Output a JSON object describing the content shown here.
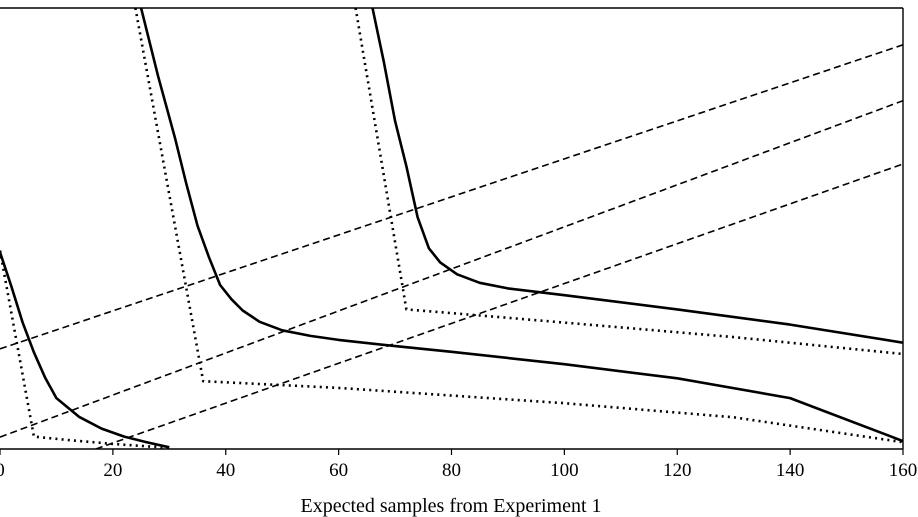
{
  "chart_data": {
    "type": "line",
    "title": "",
    "xlabel": "Expected samples from Experiment 1",
    "ylabel": "",
    "xlim": [
      0,
      160
    ],
    "ylim": [
      0,
      78
    ],
    "x_ticks": [
      {
        "value": 0,
        "label": "0"
      },
      {
        "value": 20,
        "label": "20"
      },
      {
        "value": 40,
        "label": "40"
      },
      {
        "value": 60,
        "label": "60"
      },
      {
        "value": 80,
        "label": "80"
      },
      {
        "value": 100,
        "label": "100"
      },
      {
        "value": 120,
        "label": "120"
      },
      {
        "value": 140,
        "label": "140"
      },
      {
        "value": 160,
        "label": "160"
      }
    ],
    "grid": false,
    "legend": "none",
    "series": [
      {
        "style": "solid",
        "points": [
          [
            0,
            34.8
          ],
          [
            2,
            28.8
          ],
          [
            4,
            22.4
          ],
          [
            6,
            17.1
          ],
          [
            8,
            12.6
          ],
          [
            10,
            9.0
          ],
          [
            14,
            5.7
          ],
          [
            18,
            3.6
          ],
          [
            22,
            2.2
          ],
          [
            26,
            1.2
          ],
          [
            30,
            0.3
          ]
        ]
      },
      {
        "style": "dotted",
        "points": [
          [
            0,
            35.1
          ],
          [
            6,
            2.2
          ],
          [
            12,
            1.6
          ],
          [
            20,
            0.9
          ],
          [
            30,
            0.2
          ]
        ]
      },
      {
        "style": "solid",
        "points": [
          [
            25,
            78.0
          ],
          [
            28,
            66.0
          ],
          [
            31,
            55.0
          ],
          [
            33,
            47.0
          ],
          [
            35,
            39.5
          ],
          [
            37,
            34.0
          ],
          [
            39,
            29.0
          ],
          [
            41,
            26.5
          ],
          [
            43,
            24.5
          ],
          [
            46,
            22.5
          ],
          [
            50,
            21.0
          ],
          [
            55,
            20.0
          ],
          [
            60,
            19.3
          ],
          [
            70,
            18.2
          ],
          [
            80,
            17.2
          ],
          [
            100,
            15.0
          ],
          [
            120,
            12.5
          ],
          [
            140,
            9.0
          ],
          [
            160,
            1.4
          ]
        ]
      },
      {
        "style": "dotted",
        "points": [
          [
            24,
            78.0
          ],
          [
            36,
            12.0
          ],
          [
            60,
            10.8
          ],
          [
            100,
            8.1
          ],
          [
            130,
            5.6
          ],
          [
            160,
            1.2
          ]
        ]
      },
      {
        "style": "solid",
        "points": [
          [
            66,
            78.0
          ],
          [
            68,
            68.5
          ],
          [
            70,
            58.0
          ],
          [
            72,
            50.0
          ],
          [
            74,
            41.0
          ],
          [
            76,
            35.5
          ],
          [
            78,
            33.0
          ],
          [
            81,
            30.9
          ],
          [
            85,
            29.4
          ],
          [
            90,
            28.4
          ],
          [
            100,
            27.2
          ],
          [
            120,
            24.7
          ],
          [
            140,
            22.0
          ],
          [
            160,
            18.8
          ]
        ]
      },
      {
        "style": "dotted",
        "points": [
          [
            63,
            78.0
          ],
          [
            72,
            24.7
          ],
          [
            90,
            23.2
          ],
          [
            110,
            21.5
          ],
          [
            130,
            19.8
          ],
          [
            160,
            16.8
          ]
        ]
      },
      {
        "style": "dashed",
        "points": [
          [
            0,
            17.7
          ],
          [
            160,
            71.5
          ]
        ]
      },
      {
        "style": "dashed",
        "points": [
          [
            0,
            2.1
          ],
          [
            160,
            61.6
          ]
        ]
      },
      {
        "style": "dashed",
        "points": [
          [
            17,
            0.0
          ],
          [
            160,
            50.4
          ]
        ]
      }
    ]
  }
}
